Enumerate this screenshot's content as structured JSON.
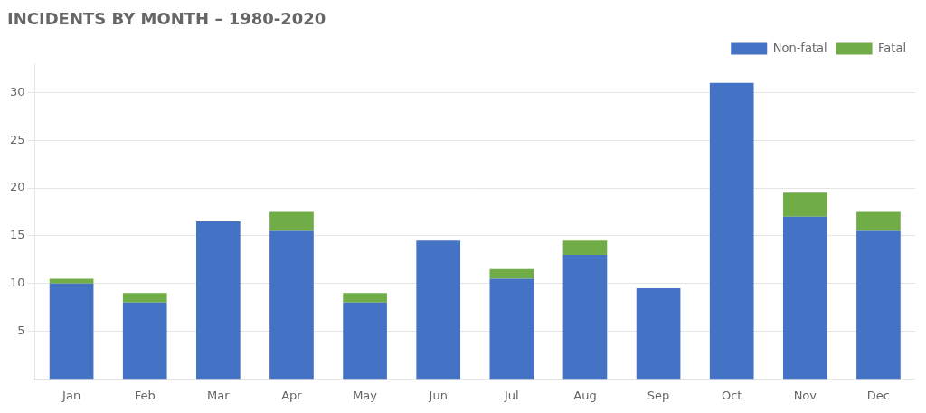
{
  "chart_data": {
    "type": "bar",
    "title": "INCIDENTS BY MONTH – 1980-2020",
    "categories": [
      "Jan",
      "Feb",
      "Mar",
      "Apr",
      "May",
      "Jun",
      "Jul",
      "Aug",
      "Sep",
      "Oct",
      "Nov",
      "Dec"
    ],
    "series": [
      {
        "name": "Non-fatal",
        "color": "#4472c4",
        "values": [
          10,
          8,
          16.5,
          15.5,
          8,
          14.5,
          10.5,
          13,
          9.5,
          31,
          17,
          15.5
        ]
      },
      {
        "name": "Fatal",
        "color": "#70ad47",
        "values": [
          0.5,
          1,
          0,
          2,
          1,
          0,
          1,
          1.5,
          0,
          0,
          2.5,
          2
        ]
      }
    ],
    "stacked": true,
    "ylim": [
      0,
      33
    ],
    "yticks": [
      5,
      10,
      15,
      20,
      25,
      30
    ],
    "grid": true,
    "legend": "upper right"
  }
}
